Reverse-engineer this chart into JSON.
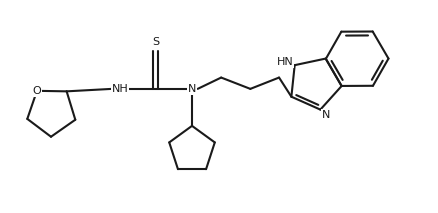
{
  "background_color": "#ffffff",
  "line_color": "#1a1a1a",
  "line_width": 1.5,
  "figsize": [
    4.38,
    2.13
  ],
  "dpi": 100,
  "xlim": [
    0,
    10
  ],
  "ylim": [
    0,
    4.83
  ]
}
